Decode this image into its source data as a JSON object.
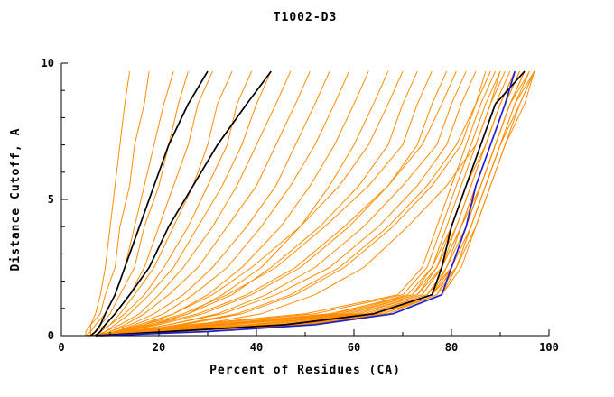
{
  "chart_data": {
    "type": "line",
    "title": "T1002-D3",
    "xlabel": "Percent of Residues (CA)",
    "ylabel": "Distance Cutoff, A",
    "xlim": [
      0,
      100
    ],
    "ylim": [
      0,
      10
    ],
    "grid": false,
    "legend": "none",
    "x_ticks": [
      0,
      20,
      40,
      60,
      80,
      100
    ],
    "x_minor_ticks": [
      10,
      30,
      50,
      70,
      90
    ],
    "y_ticks": [
      0,
      5,
      10
    ],
    "y_minor_ticks": [
      1,
      2,
      3,
      4,
      6,
      7,
      8,
      9
    ],
    "y_levels": [
      0,
      0.15,
      0.4,
      0.8,
      1.5,
      2.5,
      4,
      5.5,
      7,
      8.5,
      9.7
    ],
    "colors": {
      "model": "#ff8c00",
      "reference": "#000000",
      "highlight": "#2020d0"
    },
    "series_groups": [
      {
        "name": "model-curves",
        "color": "#ff8c00",
        "width": 1,
        "series": [
          [
            5,
            5,
            6,
            7,
            8,
            9,
            10,
            11,
            12,
            13,
            14
          ],
          [
            5,
            6,
            6,
            8,
            9,
            11,
            12,
            14,
            15,
            17,
            18
          ],
          [
            6,
            6,
            7,
            9,
            11,
            13,
            15,
            17,
            19,
            21,
            23
          ],
          [
            6,
            7,
            8,
            10,
            12,
            15,
            17,
            20,
            22,
            24,
            26
          ],
          [
            6,
            7,
            9,
            11,
            14,
            17,
            20,
            23,
            26,
            28,
            31
          ],
          [
            7,
            8,
            10,
            12,
            15,
            19,
            23,
            27,
            30,
            32,
            35
          ],
          [
            7,
            8,
            10,
            13,
            17,
            21,
            26,
            30,
            34,
            36,
            39
          ],
          [
            7,
            9,
            11,
            14,
            18,
            23,
            28,
            33,
            37,
            40,
            43
          ],
          [
            8,
            9,
            12,
            16,
            20,
            25,
            31,
            36,
            40,
            44,
            47
          ],
          [
            8,
            10,
            13,
            17,
            22,
            28,
            34,
            40,
            44,
            48,
            51
          ],
          [
            8,
            10,
            14,
            19,
            25,
            31,
            38,
            44,
            48,
            52,
            55
          ],
          [
            9,
            11,
            15,
            21,
            27,
            34,
            41,
            47,
            52,
            56,
            59
          ],
          [
            9,
            12,
            17,
            23,
            30,
            37,
            45,
            51,
            56,
            60,
            63
          ],
          [
            10,
            13,
            19,
            26,
            33,
            41,
            49,
            55,
            60,
            64,
            67
          ],
          [
            8,
            11,
            16,
            23,
            31,
            39,
            49,
            57,
            63,
            67,
            70
          ],
          [
            9,
            12,
            18,
            26,
            35,
            43,
            53,
            61,
            67,
            70,
            73
          ],
          [
            8,
            11,
            17,
            25,
            34,
            44,
            54,
            63,
            70,
            73,
            76
          ],
          [
            9,
            13,
            20,
            29,
            39,
            49,
            59,
            67,
            73,
            76,
            79
          ],
          [
            9,
            12,
            19,
            28,
            38,
            48,
            58,
            67,
            74,
            78,
            81
          ],
          [
            10,
            14,
            22,
            32,
            42,
            52,
            62,
            70,
            77,
            80,
            83
          ],
          [
            10,
            14,
            22,
            33,
            44,
            55,
            65,
            73,
            79,
            82,
            85
          ],
          [
            11,
            16,
            25,
            37,
            48,
            58,
            68,
            76,
            82,
            85,
            87
          ],
          [
            10,
            15,
            24,
            36,
            47,
            57,
            67,
            75,
            81,
            85,
            88
          ],
          [
            12,
            18,
            28,
            41,
            52,
            62,
            71,
            79,
            85,
            88,
            90
          ],
          [
            6,
            14,
            30,
            55,
            72,
            76,
            79,
            82,
            85,
            88,
            91
          ],
          [
            6,
            16,
            35,
            60,
            74,
            78,
            81,
            84,
            87,
            90,
            93
          ],
          [
            7,
            18,
            40,
            62,
            75,
            79,
            82,
            85,
            88,
            91,
            94
          ],
          [
            7,
            20,
            45,
            65,
            76,
            80,
            83,
            86,
            89,
            92,
            95
          ],
          [
            6,
            15,
            32,
            58,
            73,
            77,
            80,
            83,
            86,
            89,
            92
          ],
          [
            7,
            22,
            48,
            66,
            77,
            81,
            84,
            87,
            90,
            93,
            96
          ],
          [
            5,
            12,
            28,
            52,
            70,
            75,
            78,
            81,
            84,
            87,
            90
          ],
          [
            6,
            17,
            38,
            61,
            74,
            78,
            82,
            85,
            88,
            91,
            94
          ],
          [
            7,
            19,
            42,
            64,
            76,
            79,
            83,
            86,
            89,
            92,
            95
          ],
          [
            8,
            21,
            46,
            67,
            77,
            80,
            84,
            87,
            90,
            93,
            97
          ],
          [
            5,
            13,
            26,
            50,
            69,
            74,
            77,
            80,
            83,
            86,
            89
          ],
          [
            8,
            24,
            50,
            68,
            78,
            82,
            85,
            88,
            91,
            94,
            97
          ],
          [
            6,
            16,
            34,
            57,
            72,
            77,
            81,
            84,
            87,
            90,
            93
          ],
          [
            7,
            18,
            39,
            63,
            75,
            80,
            83,
            86,
            89,
            92,
            96
          ],
          [
            7,
            20,
            44,
            66,
            76,
            81,
            84,
            87,
            90,
            94,
            97
          ],
          [
            6,
            14,
            31,
            56,
            71,
            76,
            80,
            83,
            87,
            90,
            93
          ],
          [
            8,
            23,
            49,
            68,
            78,
            81,
            85,
            88,
            91,
            95,
            97
          ],
          [
            6,
            15,
            33,
            59,
            73,
            78,
            82,
            86,
            89,
            92,
            95
          ]
        ]
      },
      {
        "name": "reference-curves",
        "color": "#000000",
        "width": 1.7,
        "series": [
          [
            6,
            7,
            8,
            9,
            11,
            13,
            16,
            19,
            22,
            26,
            30
          ],
          [
            7,
            8,
            9,
            11,
            14,
            18,
            22,
            27,
            32,
            38,
            43
          ],
          [
            7,
            22,
            46,
            64,
            76,
            78,
            80,
            83,
            86,
            89,
            95
          ]
        ]
      },
      {
        "name": "highlight-curve",
        "color": "#2020d0",
        "width": 1.7,
        "series": [
          [
            8,
            30,
            52,
            68,
            78,
            80,
            83,
            85,
            88,
            91,
            93
          ]
        ]
      }
    ]
  }
}
